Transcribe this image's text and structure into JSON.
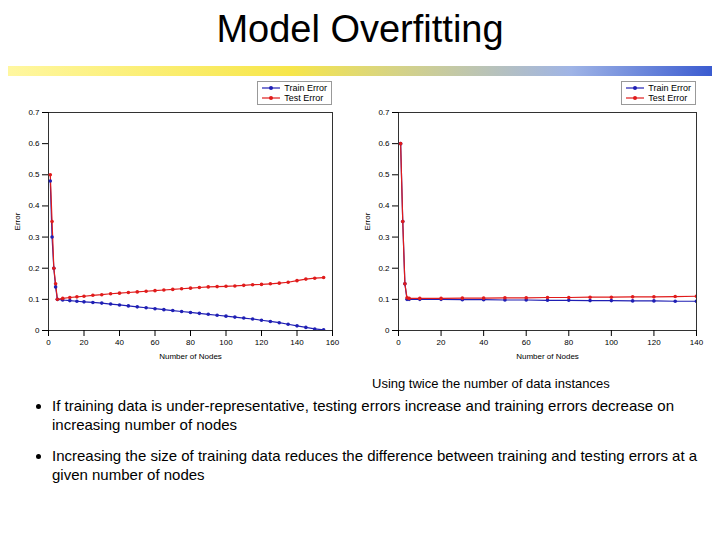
{
  "slide": {
    "title": "Model Overfitting",
    "bullets": [
      "If training data is under-representative, testing errors increase and training errors decrease on increasing number of nodes",
      "Increasing the size of training data reduces the difference between training and testing errors at a given number of nodes"
    ]
  },
  "chart_data": [
    {
      "type": "line",
      "x_label": "Number of Nodes",
      "y_label": "Error",
      "x": [
        1,
        2,
        3,
        4,
        5,
        8,
        12,
        16,
        20,
        25,
        30,
        35,
        40,
        45,
        50,
        55,
        60,
        65,
        70,
        75,
        80,
        85,
        90,
        95,
        100,
        105,
        110,
        115,
        120,
        125,
        130,
        135,
        140,
        145,
        150,
        155
      ],
      "series": [
        {
          "name": "Train Error",
          "color": "#1f1fb4",
          "marker": "dot",
          "values": [
            0.48,
            0.3,
            0.2,
            0.14,
            0.1,
            0.098,
            0.096,
            0.094,
            0.092,
            0.09,
            0.088,
            0.085,
            0.082,
            0.079,
            0.076,
            0.073,
            0.07,
            0.067,
            0.064,
            0.061,
            0.058,
            0.055,
            0.052,
            0.049,
            0.046,
            0.043,
            0.04,
            0.037,
            0.033,
            0.029,
            0.025,
            0.02,
            0.015,
            0.01,
            0.005,
            0.002
          ]
        },
        {
          "name": "Test Error",
          "color": "#e01b1b",
          "marker": "dot",
          "values": [
            0.5,
            0.35,
            0.2,
            0.15,
            0.1,
            0.103,
            0.106,
            0.108,
            0.11,
            0.113,
            0.115,
            0.118,
            0.12,
            0.122,
            0.124,
            0.126,
            0.128,
            0.13,
            0.132,
            0.134,
            0.136,
            0.138,
            0.14,
            0.141,
            0.142,
            0.143,
            0.145,
            0.147,
            0.148,
            0.15,
            0.152,
            0.155,
            0.16,
            0.165,
            0.168,
            0.17
          ]
        }
      ],
      "xlim": [
        0,
        160
      ],
      "xticks": [
        0,
        20,
        40,
        60,
        80,
        100,
        120,
        140,
        160
      ],
      "ylim": [
        0,
        0.7
      ],
      "yticks": [
        0,
        0.1,
        0.2,
        0.3,
        0.4,
        0.5,
        0.6,
        0.7
      ],
      "grid": false,
      "legend": "top-right"
    },
    {
      "type": "line",
      "x_label": "Number of Nodes",
      "y_label": "Error",
      "caption": "Using twice the number of data instances",
      "x": [
        1,
        2,
        3,
        4,
        5,
        10,
        20,
        30,
        40,
        50,
        60,
        70,
        80,
        90,
        100,
        110,
        120,
        130,
        140
      ],
      "series": [
        {
          "name": "Train Error",
          "color": "#1f1fb4",
          "marker": "dot",
          "values": [
            0.6,
            0.35,
            0.15,
            0.1,
            0.1,
            0.1,
            0.1,
            0.099,
            0.099,
            0.098,
            0.098,
            0.097,
            0.097,
            0.096,
            0.096,
            0.095,
            0.095,
            0.094,
            0.094
          ]
        },
        {
          "name": "Test Error",
          "color": "#e01b1b",
          "marker": "dot",
          "values": [
            0.6,
            0.35,
            0.15,
            0.105,
            0.103,
            0.103,
            0.103,
            0.104,
            0.104,
            0.105,
            0.105,
            0.106,
            0.106,
            0.107,
            0.107,
            0.108,
            0.108,
            0.109,
            0.11
          ]
        }
      ],
      "xlim": [
        0,
        140
      ],
      "xticks": [
        0,
        20,
        40,
        60,
        80,
        100,
        120,
        140
      ],
      "ylim": [
        0,
        0.7
      ],
      "yticks": [
        0,
        0.1,
        0.2,
        0.3,
        0.4,
        0.5,
        0.6,
        0.7
      ],
      "grid": false,
      "legend": "top-right"
    }
  ]
}
